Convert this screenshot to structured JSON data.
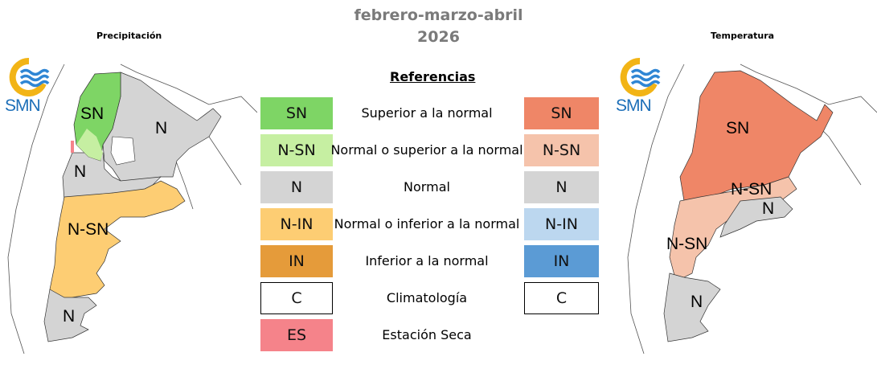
{
  "header": {
    "title_line1": "febrero-marzo-abril",
    "title_line2": "2026"
  },
  "maps": {
    "precipitation": {
      "label": "Precipitación",
      "logo_text": "SMN",
      "zones": {
        "sn": "SN",
        "n_north": "N",
        "n_center": "N",
        "nsn": "N-SN",
        "n_south": "N"
      }
    },
    "temperature": {
      "label": "Temperatura",
      "logo_text": "SMN",
      "zones": {
        "sn": "SN",
        "nsn_east": "N-SN",
        "n_east": "N",
        "nsn_west": "N-SN",
        "n_south": "N"
      }
    }
  },
  "legend": {
    "title": "Referencias",
    "rows": [
      {
        "desc": "Superior a la normal",
        "precip": "SN",
        "precip_color": "#7ed565",
        "temp": "SN",
        "temp_color": "#ef8667"
      },
      {
        "desc": "Normal o superior a la normal",
        "precip": "N-SN",
        "precip_color": "#c6efa2",
        "temp": "N-SN",
        "temp_color": "#f5c3ab"
      },
      {
        "desc": "Normal",
        "precip": "N",
        "precip_color": "#d4d4d4",
        "temp": "N",
        "temp_color": "#d4d4d4"
      },
      {
        "desc": "Normal o inferior a la normal",
        "precip": "N-IN",
        "precip_color": "#fdcd73",
        "temp": "N-IN",
        "temp_color": "#bcd7ef"
      },
      {
        "desc": "Inferior a la normal",
        "precip": "IN",
        "precip_color": "#e59b3a",
        "temp": "IN",
        "temp_color": "#5b9bd5"
      },
      {
        "desc": "Climatología",
        "precip": "C",
        "precip_color": "#ffffff",
        "temp": "C",
        "temp_color": "#ffffff"
      },
      {
        "desc": "Estación Seca",
        "precip": "ES",
        "precip_color": "#f5838a"
      }
    ]
  }
}
